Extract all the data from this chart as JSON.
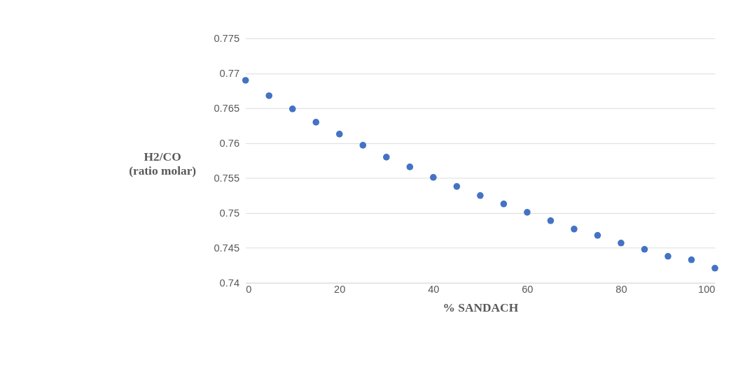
{
  "chart_data": {
    "type": "scatter",
    "xlabel": "% SANDACH",
    "ylabel": "H2/CO\n(ratio molar)",
    "x": [
      0,
      5,
      10,
      15,
      20,
      25,
      30,
      35,
      40,
      45,
      50,
      55,
      60,
      65,
      70,
      75,
      80,
      85,
      90,
      95,
      100
    ],
    "series": [
      {
        "color": "#4472c4",
        "values": [
          0.769,
          0.7668,
          0.7649,
          0.763,
          0.7613,
          0.7597,
          0.758,
          0.7566,
          0.7551,
          0.7538,
          0.7525,
          0.7513,
          0.7501,
          0.7489,
          0.7477,
          0.7468,
          0.7457,
          0.7448,
          0.7438,
          0.7433,
          0.7421
        ]
      }
    ],
    "xlim": [
      0,
      100
    ],
    "xticks": [
      0,
      20,
      40,
      60,
      80,
      100
    ],
    "ylim": [
      0.74,
      0.775
    ],
    "yticks": [
      0.74,
      0.745,
      0.75,
      0.755,
      0.76,
      0.765,
      0.77,
      0.775
    ],
    "grid": "y",
    "marker": "circle"
  }
}
